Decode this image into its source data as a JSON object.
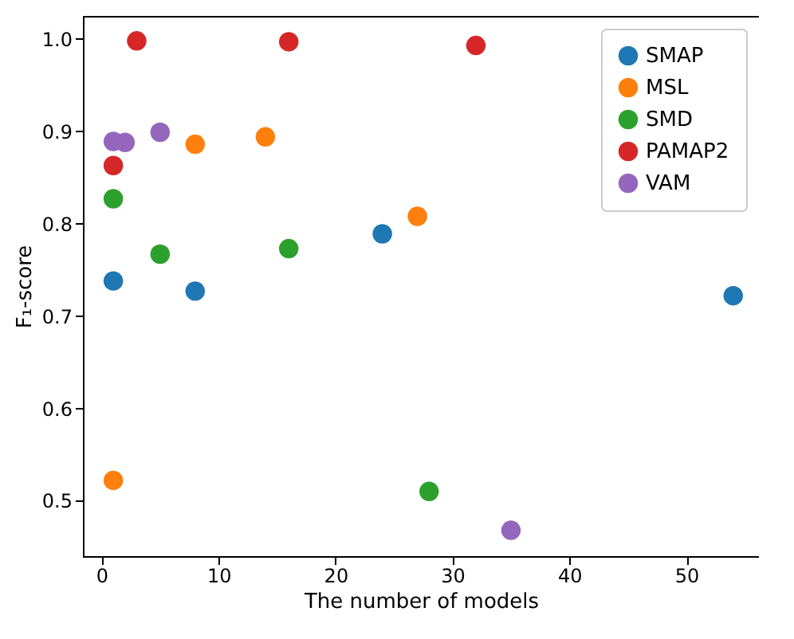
{
  "chart_data": {
    "type": "scatter",
    "xlabel": "The number of models",
    "ylabel": "F₁-score",
    "xlim": [
      -1.6,
      56.2
    ],
    "ylim": [
      0.44,
      1.025
    ],
    "xticks": [
      0,
      10,
      20,
      30,
      40,
      50
    ],
    "yticks": [
      0.5,
      0.6,
      0.7,
      0.8,
      0.9,
      {
        "value": 1,
        "label": "1.0"
      }
    ],
    "grid": false,
    "legend": "top right",
    "marker": "circle",
    "series": [
      {
        "name": "SMAP",
        "color": "#1f77b4",
        "x": [
          1,
          8,
          24,
          54
        ],
        "values": [
          0.738,
          0.727,
          0.789,
          0.722
        ]
      },
      {
        "name": "MSL",
        "color": "#ff7f0e",
        "x": [
          1,
          8,
          14,
          27
        ],
        "values": [
          0.522,
          0.886,
          0.894,
          0.808
        ]
      },
      {
        "name": "SMD",
        "color": "#2ca02c",
        "x": [
          1,
          5,
          16,
          28
        ],
        "values": [
          0.827,
          0.767,
          0.773,
          0.51
        ]
      },
      {
        "name": "PAMAP2",
        "color": "#d62728",
        "x": [
          1,
          3,
          16,
          32
        ],
        "values": [
          0.863,
          0.998,
          0.997,
          0.993
        ]
      },
      {
        "name": "VAM",
        "color": "#9467bd",
        "x": [
          1,
          2,
          5,
          35
        ],
        "values": [
          0.889,
          0.888,
          0.899,
          0.468
        ]
      }
    ]
  }
}
